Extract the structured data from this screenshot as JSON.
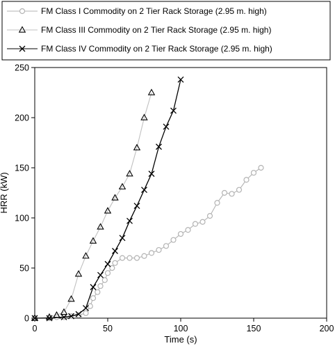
{
  "chart_data": {
    "type": "line",
    "title": "",
    "xlabel": "Time (s)",
    "ylabel": "HRR (kW)",
    "xlim": [
      0,
      200
    ],
    "ylim": [
      0,
      250
    ],
    "xticks": [
      0,
      50,
      100,
      150,
      200
    ],
    "yticks": [
      0,
      50,
      100,
      150,
      200,
      250
    ],
    "grid": false,
    "legend_position": "top",
    "series": [
      {
        "name": "FM Class I Commodity on 2 Tier Rack Storage (2.95 m. high)",
        "marker": "circle",
        "color": "#b3b3b3",
        "x": [
          0,
          10,
          15,
          20,
          25,
          30,
          35,
          38,
          40,
          43,
          45,
          48,
          50,
          53,
          55,
          60,
          65,
          70,
          75,
          80,
          85,
          90,
          95,
          100,
          105,
          110,
          115,
          120,
          125,
          130,
          135,
          140,
          145,
          150,
          155
        ],
        "y": [
          0,
          0,
          1,
          1,
          2,
          3,
          5,
          12,
          20,
          26,
          32,
          38,
          45,
          50,
          55,
          60,
          60,
          60,
          62,
          65,
          68,
          72,
          78,
          84,
          88,
          94,
          96,
          102,
          115,
          125,
          124,
          128,
          138,
          145,
          150
        ]
      },
      {
        "name": "FM Class III Commodity on 2 Tier Rack Storage (2.95 m. high)",
        "marker": "triangle",
        "color": "#c0c0c0",
        "x": [
          0,
          10,
          15,
          20,
          25,
          30,
          35,
          40,
          45,
          50,
          55,
          60,
          65,
          70,
          75,
          80
        ],
        "y": [
          0,
          1,
          3,
          6,
          19,
          44,
          62,
          77,
          91,
          107,
          120,
          131,
          144,
          170,
          200,
          225
        ]
      },
      {
        "name": "FM Class IV Commodity on 2 Tier Rack Storage (2.95 m. high)",
        "marker": "x",
        "color": "#000000",
        "x": [
          0,
          10,
          20,
          25,
          30,
          35,
          40,
          45,
          50,
          55,
          60,
          65,
          70,
          75,
          80,
          85,
          90,
          95,
          100
        ],
        "y": [
          0,
          0,
          1,
          2,
          4,
          10,
          31,
          43,
          54,
          67,
          80,
          97,
          112,
          128,
          144,
          171,
          191,
          207,
          238
        ]
      }
    ]
  }
}
